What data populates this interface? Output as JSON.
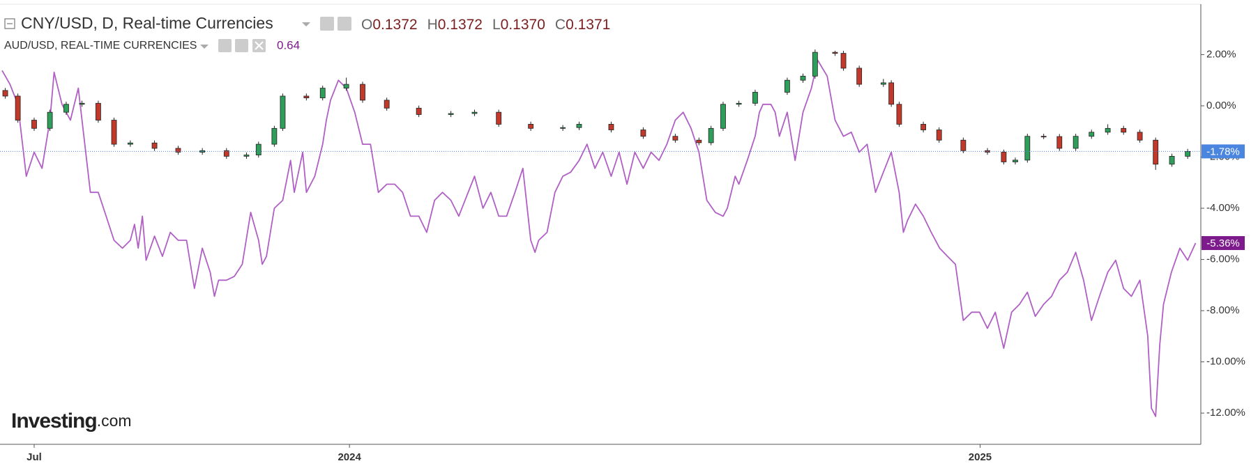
{
  "chart_data": {
    "type": "candlestick",
    "xlim": [
      0.35,
      23.2
    ],
    "ylim": [
      -13.22,
      3.97
    ],
    "xticks": [
      {
        "value": 1,
        "label": "Jul"
      },
      {
        "value": 7,
        "label": "2024"
      },
      {
        "value": 19,
        "label": "2025"
      }
    ],
    "yticks": [
      {
        "value": 2,
        "label": "2.00%"
      },
      {
        "value": 0,
        "label": "0.00%"
      },
      {
        "value": -2,
        "label": "-2.00%"
      },
      {
        "value": -4,
        "label": "-4.00%"
      },
      {
        "value": -6,
        "label": "-6.00%"
      },
      {
        "value": -8,
        "label": "-8.00%"
      },
      {
        "value": -10,
        "label": "-10.00%"
      },
      {
        "value": -12,
        "label": "-12.00%"
      }
    ],
    "ohlc": [
      {
        "key": "O",
        "text": "0.1372"
      },
      {
        "key": "H",
        "text": "0.1372"
      },
      {
        "key": "L",
        "text": "0.1370"
      },
      {
        "key": "C",
        "text": "0.1371"
      }
    ],
    "watermark": {
      "brand": "Investing",
      "suffix": ".com"
    },
    "series": [
      {
        "name": "CNY/USD, D, Real-time Currencies",
        "type": "candlestick",
        "up_color": "#2f9e5a",
        "down_color": "#c0392b",
        "label_color": "#4a86e0",
        "last_label": "-1.78%",
        "x": [
          0.45,
          0.69,
          1.0,
          1.3,
          1.61,
          1.91,
          2.22,
          2.52,
          2.83,
          3.29,
          3.74,
          4.2,
          4.66,
          5.04,
          5.27,
          5.57,
          5.73,
          6.18,
          6.49,
          6.94,
          7.25,
          7.71,
          8.32,
          8.93,
          9.38,
          9.84,
          10.45,
          11.06,
          11.37,
          11.98,
          12.59,
          13.2,
          13.65,
          13.88,
          14.11,
          14.41,
          14.72,
          15.33,
          15.63,
          15.86,
          16.24,
          16.4,
          16.7,
          17.16,
          17.31,
          17.46,
          17.92,
          18.22,
          18.68,
          19.14,
          19.45,
          19.67,
          19.9,
          20.21,
          20.51,
          20.82,
          21.12,
          21.43,
          21.73,
          22.04,
          22.34,
          22.65,
          22.95
        ],
        "open": [
          0.6,
          0.38,
          -0.56,
          -0.88,
          -0.25,
          0.06,
          0.1,
          -0.56,
          -1.5,
          -1.45,
          -1.66,
          -1.81,
          -1.75,
          -1.97,
          -1.92,
          -1.5,
          -0.88,
          0.38,
          0.31,
          0.69,
          0.84,
          0.22,
          -0.09,
          -0.34,
          -0.3,
          -0.25,
          -0.72,
          -0.88,
          -0.85,
          -0.72,
          -0.94,
          -1.19,
          -1.34,
          -1.44,
          -0.88,
          0.06,
          0.1,
          0.53,
          1.0,
          1.16,
          2.09,
          2.05,
          1.47,
          0.84,
          0.9,
          0.06,
          -0.72,
          -0.94,
          -1.34,
          -1.75,
          -1.81,
          -2.19,
          -2.12,
          -1.19,
          -1.2,
          -1.66,
          -1.19,
          -1.03,
          -0.88,
          -1.03,
          -1.34,
          -2.28,
          -1.97
        ],
        "high": [
          0.7,
          0.48,
          -0.46,
          -0.15,
          0.16,
          0.2,
          0.2,
          -0.46,
          -1.35,
          -1.35,
          -1.56,
          -1.65,
          -1.65,
          -1.82,
          -1.4,
          -0.78,
          0.48,
          0.48,
          0.79,
          1.1,
          0.94,
          0.32,
          0.01,
          -0.2,
          -0.15,
          -0.15,
          -0.62,
          -0.75,
          -0.62,
          -0.62,
          -0.84,
          -1.09,
          -1.24,
          -0.78,
          0.16,
          0.2,
          0.63,
          1.1,
          1.26,
          2.2,
          2.15,
          2.15,
          1.57,
          1.05,
          1.0,
          0.16,
          -0.62,
          -0.84,
          -1.24,
          -1.65,
          -1.71,
          -2.02,
          -1.09,
          -1.09,
          -1.1,
          -1.09,
          -0.93,
          -0.72,
          -0.78,
          -0.93,
          -1.24,
          -1.87,
          -1.68
        ],
        "low": [
          0.28,
          -0.66,
          -0.98,
          -0.98,
          -0.35,
          -0.04,
          -0.66,
          -1.6,
          -1.6,
          -1.76,
          -1.91,
          -1.91,
          -2.07,
          -2.07,
          -2.02,
          -1.6,
          -0.98,
          0.21,
          0.21,
          0.59,
          0.12,
          -0.19,
          -0.44,
          -0.44,
          -0.4,
          -0.82,
          -0.98,
          -0.98,
          -0.95,
          -1.04,
          -1.29,
          -1.44,
          -1.54,
          -1.54,
          -0.98,
          -0.04,
          0.0,
          0.43,
          0.9,
          1.06,
          1.95,
          1.37,
          0.74,
          0.74,
          -0.04,
          -0.82,
          -1.04,
          -1.44,
          -1.85,
          -1.91,
          -2.29,
          -2.29,
          -2.22,
          -1.3,
          -1.76,
          -1.76,
          -1.29,
          -1.13,
          -1.13,
          -1.44,
          -2.5,
          -2.38,
          -2.07
        ],
        "close": [
          0.38,
          -0.56,
          -0.88,
          -0.25,
          0.06,
          0.1,
          -0.56,
          -1.5,
          -1.45,
          -1.66,
          -1.81,
          -1.75,
          -1.97,
          -1.92,
          -1.5,
          -0.88,
          0.38,
          0.31,
          0.69,
          0.84,
          0.22,
          -0.09,
          -0.34,
          -0.3,
          -0.25,
          -0.72,
          -0.88,
          -0.85,
          -0.72,
          -0.94,
          -1.19,
          -1.34,
          -1.44,
          -0.88,
          0.06,
          0.1,
          0.53,
          1.0,
          1.16,
          2.09,
          2.05,
          1.47,
          0.84,
          0.9,
          0.06,
          -0.72,
          -0.94,
          -1.34,
          -1.75,
          -1.81,
          -2.19,
          -2.12,
          -1.19,
          -1.2,
          -1.66,
          -1.19,
          -1.03,
          -0.88,
          -1.03,
          -1.34,
          -2.28,
          -1.97,
          -1.78
        ]
      },
      {
        "name": "AUD/USD, REAL-TIME CURRENCIES",
        "type": "line",
        "color": "#b05fc4",
        "label_color": "#7d1a8c",
        "last_label": "-5.36%",
        "price": "0.64",
        "x": [
          0.39,
          0.54,
          0.69,
          0.85,
          1.0,
          1.15,
          1.3,
          1.38,
          1.53,
          1.69,
          1.84,
          1.91,
          2.07,
          2.22,
          2.37,
          2.52,
          2.68,
          2.83,
          2.91,
          2.98,
          3.06,
          3.13,
          3.29,
          3.44,
          3.59,
          3.74,
          3.9,
          4.05,
          4.2,
          4.35,
          4.43,
          4.51,
          4.66,
          4.81,
          4.96,
          5.12,
          5.27,
          5.34,
          5.42,
          5.57,
          5.73,
          5.88,
          5.95,
          6.11,
          6.18,
          6.34,
          6.49,
          6.56,
          6.64,
          6.79,
          6.94,
          7.1,
          7.25,
          7.4,
          7.55,
          7.71,
          7.86,
          8.01,
          8.16,
          8.32,
          8.47,
          8.62,
          8.77,
          8.93,
          9.08,
          9.23,
          9.38,
          9.54,
          9.69,
          9.84,
          9.99,
          10.15,
          10.3,
          10.45,
          10.53,
          10.6,
          10.76,
          10.91,
          11.06,
          11.21,
          11.37,
          11.52,
          11.67,
          11.82,
          11.98,
          12.13,
          12.28,
          12.43,
          12.59,
          12.74,
          12.89,
          13.04,
          13.2,
          13.35,
          13.5,
          13.65,
          13.8,
          13.96,
          14.11,
          14.19,
          14.34,
          14.41,
          14.57,
          14.72,
          14.8,
          14.87,
          15.02,
          15.1,
          15.18,
          15.33,
          15.48,
          15.63,
          15.79,
          15.91,
          16.09,
          16.24,
          16.4,
          16.55,
          16.7,
          16.85,
          17.01,
          17.16,
          17.31,
          17.46,
          17.54,
          17.62,
          17.77,
          17.92,
          18.07,
          18.23,
          18.38,
          18.53,
          18.68,
          18.84,
          18.99,
          19.14,
          19.29,
          19.45,
          19.6,
          19.75,
          19.9,
          20.05,
          20.21,
          20.36,
          20.51,
          20.66,
          20.82,
          20.97,
          21.12,
          21.27,
          21.43,
          21.58,
          21.73,
          21.88,
          22.04,
          22.19,
          22.26,
          22.34,
          22.42,
          22.49,
          22.64,
          22.8,
          22.95,
          23.1
        ],
        "values": [
          1.38,
          0.84,
          0.06,
          -2.75,
          -1.81,
          -2.44,
          -0.56,
          1.31,
          0.06,
          -0.56,
          0.69,
          -0.56,
          -3.38,
          -3.38,
          -4.31,
          -5.25,
          -5.56,
          -5.25,
          -4.63,
          -5.56,
          -4.31,
          -6.03,
          -5.09,
          -5.88,
          -4.94,
          -5.25,
          -5.25,
          -7.13,
          -5.56,
          -6.5,
          -7.44,
          -6.81,
          -6.81,
          -6.66,
          -6.19,
          -4.16,
          -5.25,
          -6.19,
          -5.88,
          -4.0,
          -3.69,
          -2.13,
          -3.38,
          -1.81,
          -3.38,
          -2.75,
          -1.5,
          -0.56,
          0.22,
          1.0,
          0.69,
          -0.25,
          -1.5,
          -1.5,
          -3.38,
          -3.06,
          -3.06,
          -3.38,
          -4.31,
          -4.31,
          -4.94,
          -3.69,
          -3.38,
          -3.69,
          -4.31,
          -3.53,
          -2.75,
          -4.0,
          -3.38,
          -4.31,
          -4.31,
          -3.38,
          -2.44,
          -5.25,
          -5.72,
          -5.25,
          -4.94,
          -3.38,
          -2.75,
          -2.59,
          -2.13,
          -1.5,
          -2.44,
          -1.81,
          -2.75,
          -1.81,
          -3.06,
          -1.81,
          -2.44,
          -1.81,
          -2.13,
          -1.5,
          -0.56,
          -0.25,
          -0.88,
          -1.81,
          -3.69,
          -4.16,
          -4.31,
          -4.0,
          -2.75,
          -3.06,
          -2.13,
          -1.19,
          -0.25,
          0.06,
          0.06,
          -0.25,
          -1.19,
          -0.25,
          -2.13,
          -0.25,
          0.69,
          1.78,
          1.16,
          -0.56,
          -1.19,
          -1.03,
          -1.81,
          -1.5,
          -3.38,
          -2.59,
          -1.81,
          -3.38,
          -4.94,
          -4.47,
          -3.84,
          -4.31,
          -4.94,
          -5.56,
          -5.88,
          -6.19,
          -8.38,
          -8.06,
          -8.06,
          -8.69,
          -8.06,
          -9.47,
          -8.06,
          -7.75,
          -7.28,
          -8.22,
          -7.75,
          -7.44,
          -6.81,
          -6.5,
          -5.72,
          -6.81,
          -8.38,
          -7.44,
          -6.5,
          -6.03,
          -7.13,
          -7.44,
          -6.81,
          -9.0,
          -11.81,
          -12.13,
          -9.31,
          -7.75,
          -6.5,
          -5.56,
          -6.03,
          -5.36
        ]
      }
    ]
  }
}
